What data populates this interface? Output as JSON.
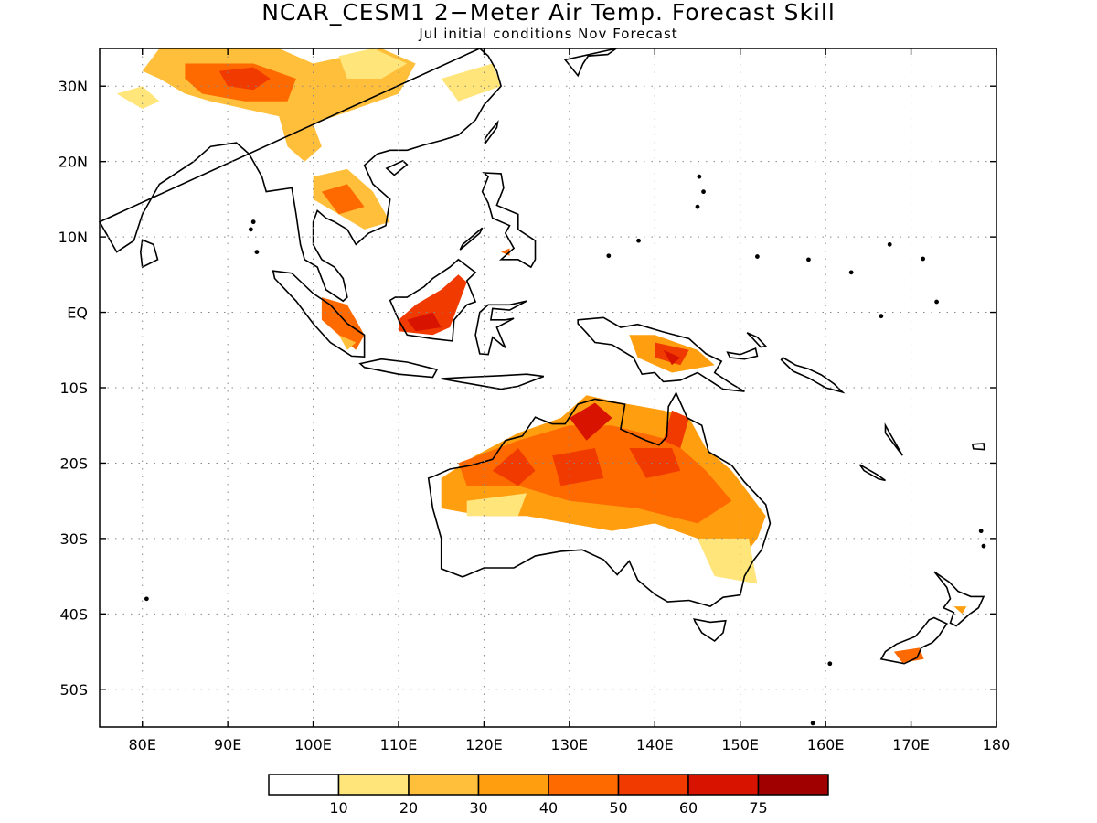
{
  "title": "NCAR_CESM1 2−Meter Air Temp. Forecast Skill",
  "subtitle": "Jul initial conditions  Nov Forecast",
  "chart_data": {
    "type": "heatmap",
    "lon_range": [
      75,
      180
    ],
    "lat_range": [
      -55,
      35
    ],
    "grid": true,
    "lat_ticks": [
      "30N",
      "20N",
      "10N",
      "EQ",
      "10S",
      "20S",
      "30S",
      "40S",
      "50S"
    ],
    "lon_ticks": [
      "80E",
      "90E",
      "100E",
      "110E",
      "120E",
      "130E",
      "140E",
      "150E",
      "160E",
      "170E",
      "180"
    ],
    "colorbar": {
      "labels": [
        "10",
        "20",
        "30",
        "40",
        "50",
        "60",
        "75"
      ],
      "colors": [
        "#ffffff",
        "#ffe57a",
        "#ffbf3a",
        "#ff9f10",
        "#ff6a00",
        "#f03a00",
        "#d81400",
        "#a00000"
      ]
    }
  }
}
